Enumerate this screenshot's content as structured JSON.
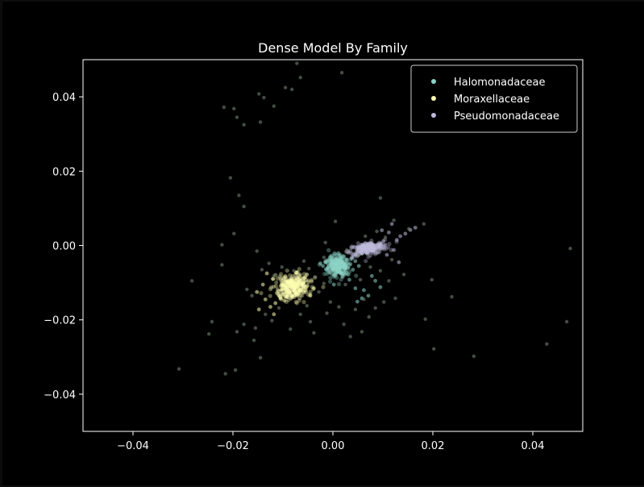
{
  "chart_data": {
    "type": "scatter",
    "title": "Dense Model By Family",
    "xlabel": "",
    "ylabel": "",
    "xlim": [
      -0.05,
      0.05
    ],
    "ylim": [
      -0.05,
      0.05
    ],
    "xticks": [
      -0.04,
      -0.02,
      0.0,
      0.02,
      0.04
    ],
    "yticks": [
      -0.04,
      -0.02,
      0.0,
      0.02,
      0.04
    ],
    "xtick_labels": [
      "−0.04",
      "−0.02",
      "0.00",
      "0.02",
      "0.04"
    ],
    "ytick_labels": [
      "−0.04",
      "−0.02",
      "0.00",
      "0.02",
      "0.04"
    ],
    "grid": false,
    "legend_position": "top-right",
    "background": "#000000",
    "axis_color": "#ffffff",
    "series": [
      {
        "name": "Halomonadaceae",
        "color": "#8dd3c7",
        "cluster_center": [
          0.001,
          -0.0055
        ],
        "points": [
          [
            0.0005,
            -0.0055
          ],
          [
            0.0012,
            -0.006
          ],
          [
            -0.0005,
            -0.005
          ],
          [
            0.002,
            -0.0045
          ],
          [
            0.001,
            -0.007
          ],
          [
            0.0,
            -0.0065
          ],
          [
            0.0025,
            -0.0055
          ],
          [
            0.0015,
            -0.004
          ],
          [
            -0.001,
            -0.006
          ],
          [
            0.003,
            -0.006
          ],
          [
            0.0008,
            -0.0035
          ],
          [
            0.0018,
            -0.0075
          ],
          [
            -0.0015,
            -0.0045
          ],
          [
            0.0035,
            -0.005
          ],
          [
            0.0002,
            -0.008
          ],
          [
            0.0028,
            -0.0038
          ],
          [
            -0.0008,
            -0.0072
          ],
          [
            0.0022,
            -0.0068
          ],
          [
            0.0011,
            -0.0048
          ],
          [
            0.0006,
            -0.0062
          ],
          [
            0.004,
            -0.0065
          ],
          [
            -0.002,
            -0.0055
          ],
          [
            0.0014,
            -0.0028
          ],
          [
            0.0031,
            -0.0078
          ],
          [
            -0.0003,
            -0.0041
          ],
          [
            0.0045,
            -0.0042
          ],
          [
            0.0017,
            -0.0058
          ],
          [
            0.0009,
            -0.0052
          ],
          [
            0.0026,
            -0.0061
          ],
          [
            -0.0012,
            -0.0066
          ],
          [
            0.0038,
            -0.0032
          ],
          [
            0.0003,
            -0.0049
          ],
          [
            0.0019,
            -0.0083
          ],
          [
            0.0052,
            -0.0055
          ],
          [
            -0.0025,
            -0.0048
          ],
          [
            0.0062,
            -0.012
          ],
          [
            0.0071,
            -0.0135
          ],
          [
            0.0045,
            -0.0115
          ],
          [
            0.0085,
            -0.0095
          ],
          [
            0.0058,
            -0.0142
          ],
          [
            0.0002,
            -0.0105
          ],
          [
            0.0033,
            -0.0092
          ],
          [
            0.0078,
            -0.0082
          ],
          [
            0.0049,
            -0.0151
          ],
          [
            0.0095,
            -0.0112
          ]
        ]
      },
      {
        "name": "Moraxellaceae",
        "color": "#ffffb3",
        "cluster_center": [
          -0.008,
          -0.011
        ],
        "points": [
          [
            -0.008,
            -0.011
          ],
          [
            -0.009,
            -0.012
          ],
          [
            -0.007,
            -0.01
          ],
          [
            -0.0085,
            -0.0125
          ],
          [
            -0.0075,
            -0.0105
          ],
          [
            -0.01,
            -0.013
          ],
          [
            -0.0065,
            -0.0095
          ],
          [
            -0.0095,
            -0.0115
          ],
          [
            -0.0082,
            -0.0135
          ],
          [
            -0.0072,
            -0.0112
          ],
          [
            -0.0105,
            -0.0142
          ],
          [
            -0.006,
            -0.0088
          ],
          [
            -0.0088,
            -0.0102
          ],
          [
            -0.0078,
            -0.0122
          ],
          [
            -0.0092,
            -0.0138
          ],
          [
            -0.0068,
            -0.0118
          ],
          [
            -0.0112,
            -0.0128
          ],
          [
            -0.0058,
            -0.0098
          ],
          [
            -0.0083,
            -0.0092
          ],
          [
            -0.0097,
            -0.0148
          ],
          [
            -0.0074,
            -0.0128
          ],
          [
            -0.0102,
            -0.0118
          ],
          [
            -0.0062,
            -0.0105
          ],
          [
            -0.0087,
            -0.0115
          ],
          [
            -0.0079,
            -0.0099
          ],
          [
            -0.0093,
            -0.0125
          ],
          [
            -0.0069,
            -0.0102
          ],
          [
            -0.0108,
            -0.0135
          ],
          [
            -0.0055,
            -0.0085
          ],
          [
            -0.0085,
            -0.0108
          ],
          [
            -0.0115,
            -0.0155
          ],
          [
            -0.0052,
            -0.0078
          ],
          [
            -0.0098,
            -0.0108
          ],
          [
            -0.0076,
            -0.0115
          ],
          [
            -0.009,
            -0.0132
          ],
          [
            -0.0125,
            -0.0165
          ],
          [
            -0.012,
            -0.009
          ],
          [
            -0.0135,
            -0.0145
          ],
          [
            -0.0045,
            -0.0135
          ],
          [
            -0.014,
            -0.0105
          ],
          [
            -0.0118,
            -0.0185
          ],
          [
            -0.0152,
            -0.0125
          ],
          [
            -0.0038,
            -0.0115
          ],
          [
            -0.0132,
            -0.0075
          ],
          [
            -0.0148,
            -0.0172
          ]
        ]
      },
      {
        "name": "Pseudomonadaceae",
        "color": "#bebada",
        "cluster_center": [
          0.007,
          -0.0008
        ],
        "points": [
          [
            0.007,
            -0.0008
          ],
          [
            0.0075,
            -0.0005
          ],
          [
            0.0065,
            -0.0012
          ],
          [
            0.008,
            -0.0002
          ],
          [
            0.006,
            -0.0015
          ],
          [
            0.0085,
            0.0
          ],
          [
            0.0055,
            -0.0018
          ],
          [
            0.0072,
            -0.0003
          ],
          [
            0.0068,
            -0.001
          ],
          [
            0.0078,
            -0.0007
          ],
          [
            0.009,
            0.0003
          ],
          [
            0.005,
            -0.002
          ],
          [
            0.0062,
            -0.0005
          ],
          [
            0.0082,
            -0.0012
          ],
          [
            0.0058,
            -0.0009
          ],
          [
            0.0073,
            0.0002
          ],
          [
            0.0088,
            -0.0005
          ],
          [
            0.0048,
            -0.0014
          ],
          [
            0.0067,
            -0.0017
          ],
          [
            0.0079,
            0.0004
          ],
          [
            0.0095,
            0.0006
          ],
          [
            0.0045,
            -0.0022
          ],
          [
            0.0071,
            -0.0011
          ],
          [
            0.0063,
            -0.0001
          ],
          [
            0.0084,
            -0.0009
          ],
          [
            0.0053,
            -0.0006
          ],
          [
            0.0076,
            -0.0014
          ],
          [
            0.0092,
            -0.0002
          ],
          [
            0.0059,
            -0.0021
          ],
          [
            0.0069,
            0.0001
          ],
          [
            0.0101,
            0.0012
          ],
          [
            0.0041,
            -0.0026
          ],
          [
            0.0105,
            0.0002
          ],
          [
            0.0112,
            0.0035
          ],
          [
            0.0122,
            -0.0012
          ],
          [
            0.0135,
            0.0025
          ],
          [
            0.0098,
            0.0041
          ],
          [
            0.0118,
            0.0058
          ],
          [
            0.0038,
            -0.0035
          ],
          [
            0.0128,
            0.0015
          ],
          [
            0.0145,
            0.0032
          ],
          [
            0.0108,
            -0.0025
          ],
          [
            0.0155,
            0.0042
          ],
          [
            0.0132,
            -0.0045
          ],
          [
            0.0165,
            0.0048
          ]
        ]
      },
      {
        "name": "",
        "color": "#708070",
        "points": [
          [
            -0.0072,
            0.049
          ],
          [
            -0.0065,
            0.0452
          ],
          [
            0.0018,
            0.0465
          ],
          [
            -0.0095,
            0.0425
          ],
          [
            -0.0082,
            0.042
          ],
          [
            -0.0148,
            0.0408
          ],
          [
            -0.0138,
            0.0398
          ],
          [
            -0.0118,
            0.0375
          ],
          [
            -0.0218,
            0.0372
          ],
          [
            -0.0198,
            0.0368
          ],
          [
            -0.0192,
            0.0345
          ],
          [
            -0.0178,
            0.0325
          ],
          [
            -0.0145,
            0.0332
          ],
          [
            -0.0205,
            0.0182
          ],
          [
            -0.0188,
            0.0135
          ],
          [
            -0.0178,
            0.0105
          ],
          [
            -0.0198,
            0.0032
          ],
          [
            -0.0222,
            0.0002
          ],
          [
            -0.0222,
            -0.0052
          ],
          [
            -0.0282,
            -0.0095
          ],
          [
            -0.0242,
            -0.0205
          ],
          [
            -0.0248,
            -0.0238
          ],
          [
            -0.0192,
            -0.0232
          ],
          [
            -0.0178,
            -0.0212
          ],
          [
            -0.0155,
            -0.0222
          ],
          [
            -0.0158,
            -0.0255
          ],
          [
            -0.0145,
            -0.0302
          ],
          [
            -0.0308,
            -0.0332
          ],
          [
            -0.0215,
            -0.0345
          ],
          [
            -0.0195,
            -0.0335
          ],
          [
            0.0475,
            -0.0008
          ],
          [
            0.0468,
            -0.0205
          ],
          [
            0.0428,
            -0.0265
          ],
          [
            0.0282,
            -0.0298
          ],
          [
            0.0202,
            -0.0278
          ],
          [
            0.0238,
            -0.0138
          ],
          [
            0.0198,
            -0.0092
          ],
          [
            0.0185,
            -0.0198
          ],
          [
            0.0182,
            0.0058
          ],
          [
            0.0152,
            0.0045
          ],
          [
            0.0095,
            0.0128
          ],
          [
            0.0005,
            0.0065
          ],
          [
            -0.0015,
            0.0008
          ],
          [
            0.0122,
            0.0068
          ],
          [
            0.0142,
            -0.0078
          ],
          [
            -0.0162,
            -0.0135
          ],
          [
            -0.0172,
            -0.0118
          ],
          [
            -0.0142,
            -0.0065
          ],
          [
            -0.0152,
            -0.0015
          ],
          [
            -0.0128,
            -0.0048
          ],
          [
            -0.0135,
            -0.0185
          ],
          [
            -0.0122,
            -0.0202
          ],
          [
            -0.0085,
            -0.0225
          ],
          [
            -0.0045,
            -0.0205
          ],
          [
            -0.0038,
            -0.0235
          ],
          [
            -0.0012,
            -0.0182
          ],
          [
            0.0012,
            -0.0165
          ],
          [
            0.0022,
            -0.0212
          ],
          [
            0.0035,
            -0.0245
          ],
          [
            0.0058,
            -0.0232
          ],
          [
            0.0072,
            -0.0192
          ],
          [
            0.0085,
            -0.0168
          ],
          [
            0.0102,
            -0.0152
          ],
          [
            0.0125,
            -0.0142
          ],
          [
            0.0112,
            -0.0095
          ],
          [
            0.0062,
            -0.0145
          ],
          [
            0.0045,
            -0.0172
          ],
          [
            -0.0005,
            -0.0152
          ],
          [
            -0.0028,
            -0.0125
          ],
          [
            -0.0052,
            -0.0162
          ],
          [
            -0.0065,
            -0.0185
          ],
          [
            -0.0108,
            -0.0168
          ],
          [
            -0.0118,
            -0.0082
          ],
          [
            -0.0102,
            -0.0058
          ],
          [
            -0.0078,
            -0.0068
          ],
          [
            -0.0048,
            -0.0062
          ],
          [
            -0.0035,
            -0.0085
          ],
          [
            -0.0018,
            -0.0102
          ],
          [
            0.0025,
            -0.0105
          ],
          [
            0.0055,
            -0.0092
          ],
          [
            0.0075,
            -0.0058
          ],
          [
            0.0095,
            -0.0068
          ],
          [
            0.0118,
            -0.0038
          ],
          [
            0.0052,
            -0.0025
          ],
          [
            0.0028,
            -0.0012
          ],
          [
            -0.0018,
            -0.0032
          ],
          [
            -0.0058,
            -0.0042
          ],
          [
            0.0105,
            0.0022
          ],
          [
            0.0088,
            0.0038
          ],
          [
            0.0065,
            0.0025
          ]
        ]
      }
    ]
  }
}
